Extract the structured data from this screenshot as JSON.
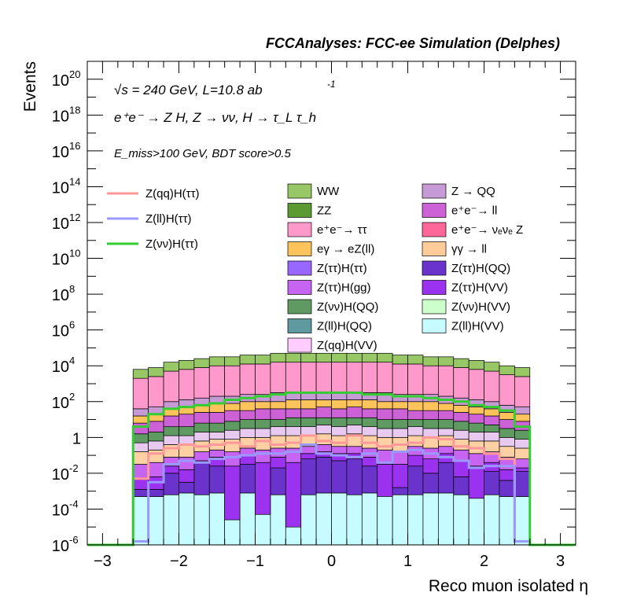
{
  "header": "FCCAnalyses: FCC-ee Simulation (Delphes)",
  "annotations": {
    "energy_line": "√s = 240 GeV, L=10.8 ab",
    "energy_sup": "-1",
    "process_line": "e⁺e⁻ → Z H, Z → νν, H → τ_L τ_h",
    "selection_line": "E_miss>100 GeV, BDT score>0.5"
  },
  "chart_data": {
    "type": "bar",
    "stacked": true,
    "log_y": true,
    "xlabel": "Reco muon isolated η",
    "ylabel": "Events",
    "xlim": [
      -3.2,
      3.2
    ],
    "ylim_exponents": [
      -6,
      21
    ],
    "x_ticks": [
      -3,
      -2,
      -1,
      0,
      1,
      2,
      3
    ],
    "x_tick_labels": [
      "−3",
      "−2",
      "−1",
      "0",
      "1",
      "2",
      "3"
    ],
    "y_ticks": [
      -6,
      -4,
      -2,
      0,
      2,
      4,
      6,
      8,
      10,
      12,
      14,
      16,
      18,
      20
    ],
    "y_tick_labels": [
      {
        "base": "10",
        "exp": "-6"
      },
      {
        "base": "10",
        "exp": "-4"
      },
      {
        "base": "10",
        "exp": "-2"
      },
      {
        "base": "1",
        "exp": ""
      },
      {
        "base": "10",
        "exp": "2"
      },
      {
        "base": "10",
        "exp": "4"
      },
      {
        "base": "10",
        "exp": "6"
      },
      {
        "base": "10",
        "exp": "8"
      },
      {
        "base": "10",
        "exp": "10"
      },
      {
        "base": "10",
        "exp": "12"
      },
      {
        "base": "10",
        "exp": "14"
      },
      {
        "base": "10",
        "exp": "16"
      },
      {
        "base": "10",
        "exp": "18"
      },
      {
        "base": "10",
        "exp": "20"
      }
    ],
    "bin_edges": [
      -2.6,
      -2.4,
      -2.2,
      -2.0,
      -1.8,
      -1.6,
      -1.4,
      -1.2,
      -1.0,
      -0.8,
      -0.6,
      -0.4,
      -0.2,
      0.0,
      0.2,
      0.4,
      0.6,
      0.8,
      1.0,
      1.2,
      1.4,
      1.6,
      1.8,
      2.0,
      2.2,
      2.4,
      2.6
    ],
    "stack_boundaries_log10": [
      [
        -6,
        -6,
        -6,
        -6,
        -6,
        -6,
        -6,
        -6,
        -6,
        -6,
        -6,
        -6,
        -6,
        -6,
        -6,
        -6,
        -6,
        -6,
        -6,
        -6,
        -6,
        -6,
        -6,
        -6,
        -6,
        -6
      ],
      [
        -3.3,
        -3.3,
        -3.2,
        -3.1,
        -3.2,
        -3.1,
        -3.2,
        -3.1,
        -3.2,
        -3.2,
        -3.1,
        -3.2,
        -3.1,
        -3.1,
        -3.2,
        -3.1,
        -3.1,
        -3.2,
        -3.2,
        -3.1,
        -3.1,
        -3.2,
        -3.1,
        -3.2,
        -3.3,
        -3.3
      ],
      [
        -2.9,
        -2.9,
        -2.0,
        -2.5,
        -1.4,
        -1.6,
        -4.6,
        -1.5,
        -4.3,
        -1.7,
        -5.0,
        -1.2,
        -1.1,
        -1.3,
        -1.2,
        -1.6,
        -3.3,
        -2.8,
        -1.6,
        -2.0,
        -1.4,
        -2.2,
        -3.4,
        -1.9,
        -2.4,
        -1.9
      ],
      [
        -2.3,
        -2.2,
        -1.6,
        -1.8,
        -1.3,
        -1.1,
        -1.6,
        -1.0,
        -1.4,
        -1.1,
        -1.4,
        -0.9,
        -0.8,
        -0.9,
        -0.9,
        -1.1,
        -1.5,
        -1.5,
        -1.0,
        -1.2,
        -0.9,
        -1.3,
        -1.6,
        -1.4,
        -1.8,
        -1.7
      ],
      [
        -1.5,
        -1.4,
        -1.1,
        -1.1,
        -0.8,
        -0.7,
        -0.8,
        -0.6,
        -0.7,
        -0.6,
        -0.6,
        -0.5,
        -0.4,
        -0.5,
        -0.5,
        -0.6,
        -0.7,
        -0.8,
        -0.5,
        -0.6,
        -0.5,
        -0.7,
        -0.9,
        -0.8,
        -1.1,
        -1.2
      ],
      [
        -0.8,
        -0.7,
        -0.4,
        -0.4,
        -0.2,
        -0.1,
        -0.1,
        0.0,
        0.0,
        0.1,
        0.1,
        0.1,
        0.2,
        0.1,
        0.2,
        0.1,
        0.0,
        0.0,
        0.1,
        0.0,
        0.1,
        -0.1,
        -0.2,
        -0.2,
        -0.5,
        -0.6
      ],
      [
        -0.3,
        -0.2,
        0.1,
        0.1,
        0.3,
        0.3,
        0.4,
        0.5,
        0.5,
        0.6,
        0.6,
        0.6,
        0.7,
        0.6,
        0.7,
        0.6,
        0.5,
        0.5,
        0.6,
        0.5,
        0.5,
        0.4,
        0.3,
        0.3,
        0.0,
        -0.1
      ],
      [
        0.2,
        0.3,
        0.6,
        0.6,
        0.8,
        0.8,
        0.9,
        1.0,
        1.0,
        1.0,
        1.1,
        1.1,
        1.1,
        1.1,
        1.1,
        1.1,
        1.0,
        1.0,
        1.0,
        1.0,
        1.0,
        0.9,
        0.8,
        0.7,
        0.5,
        0.4
      ],
      [
        0.8,
        0.9,
        1.2,
        1.3,
        1.4,
        1.4,
        1.5,
        1.5,
        1.6,
        1.6,
        1.6,
        1.6,
        1.7,
        1.6,
        1.7,
        1.6,
        1.6,
        1.6,
        1.5,
        1.5,
        1.5,
        1.4,
        1.3,
        1.2,
        1.0,
        0.9
      ],
      [
        1.2,
        1.3,
        1.6,
        1.7,
        1.8,
        1.9,
        1.9,
        2.0,
        2.0,
        2.0,
        2.1,
        2.1,
        2.1,
        2.1,
        2.1,
        2.1,
        2.0,
        2.0,
        2.0,
        2.0,
        1.9,
        1.8,
        1.7,
        1.6,
        1.4,
        1.3
      ],
      [
        1.6,
        1.7,
        2.0,
        2.1,
        2.2,
        2.3,
        2.3,
        2.4,
        2.4,
        2.5,
        2.5,
        2.5,
        2.5,
        2.5,
        2.5,
        2.5,
        2.5,
        2.4,
        2.4,
        2.4,
        2.3,
        2.2,
        2.1,
        2.0,
        1.8,
        1.7
      ],
      [
        3.3,
        3.4,
        3.7,
        3.8,
        3.9,
        4.0,
        4.0,
        4.1,
        4.1,
        4.2,
        4.2,
        4.2,
        4.2,
        4.2,
        4.2,
        4.2,
        4.2,
        4.1,
        4.1,
        4.0,
        4.0,
        3.9,
        3.8,
        3.7,
        3.5,
        3.4
      ],
      [
        3.8,
        3.9,
        4.2,
        4.3,
        4.4,
        4.5,
        4.5,
        4.6,
        4.6,
        4.7,
        4.7,
        4.7,
        4.7,
        4.7,
        4.7,
        4.7,
        4.7,
        4.6,
        4.6,
        4.5,
        4.5,
        4.4,
        4.3,
        4.2,
        4.0,
        3.9
      ]
    ],
    "stack_fills": [
      "#c6fbff",
      "#6a33cc",
      "#9a32f0",
      "#c765f2",
      "#ffd0a3",
      "#e8caf0",
      "#5e9a62",
      "#cd62d6",
      "#ffc35c",
      "#c69ad4",
      "#ff99cc",
      "#98c765"
    ],
    "lines": [
      {
        "name": "Z(qq)H(ττ)",
        "color": "#ff9999",
        "log10": [
          -2.3,
          -0.9,
          -0.6,
          -0.4,
          -0.5,
          -0.4,
          -0.3,
          -0.5,
          -0.2,
          -0.4,
          -0.3,
          0.1,
          -0.2,
          -0.3,
          0.1,
          -0.3,
          -0.5,
          -0.4,
          -0.3,
          0.0,
          -0.1,
          -0.5,
          -0.6,
          -0.9,
          -1.2,
          -5.8
        ]
      },
      {
        "name": "Z(ll)H(ττ)",
        "color": "#9999ff",
        "log10": [
          -5.8,
          -2.5,
          -1.5,
          -1.3,
          -1.4,
          -1.2,
          -1.1,
          -1.0,
          -0.9,
          -0.9,
          -0.8,
          -0.4,
          -0.9,
          -1.0,
          -1.1,
          -0.9,
          -1.4,
          -0.8,
          -0.7,
          -0.9,
          -1.1,
          -1.3,
          -1.7,
          -1.6,
          -1.6,
          -5.8
        ]
      },
      {
        "name": "Z(νν)H(ττ)",
        "color": "#33cc33",
        "log10": [
          0.6,
          1.3,
          1.6,
          1.7,
          1.8,
          1.9,
          2.1,
          2.2,
          2.3,
          2.4,
          2.5,
          2.5,
          2.5,
          2.5,
          2.5,
          2.4,
          2.4,
          2.3,
          2.3,
          2.2,
          2.1,
          2.0,
          1.8,
          1.7,
          1.5,
          0.6
        ]
      }
    ],
    "legend": [
      {
        "label": "WW",
        "color": "#98c765"
      },
      {
        "label": "Z → QQ",
        "color": "#c69ad4"
      },
      {
        "label": "ZZ",
        "color": "#5a9a30"
      },
      {
        "label": "e⁺e⁻→ ll",
        "color": "#cd62d6"
      },
      {
        "label": "e⁺e⁻→ ττ",
        "color": "#ff99cc"
      },
      {
        "label": "e⁺e⁻→ νₑνₑ Z",
        "color": "#ff6699"
      },
      {
        "label": "eγ → eZ(ll)",
        "color": "#ffc35c"
      },
      {
        "label": "γγ → ll",
        "color": "#ffcc99"
      },
      {
        "label": "Z(ττ)H(ττ)",
        "color": "#9966ff"
      },
      {
        "label": "Z(ττ)H(QQ)",
        "color": "#6a33cc"
      },
      {
        "label": "Z(ττ)H(gg)",
        "color": "#c765f2"
      },
      {
        "label": "Z(ττ)H(VV)",
        "color": "#9a32f0"
      },
      {
        "label": "Z(νν)H(QQ)",
        "color": "#5e9a62"
      },
      {
        "label": "Z(νν)H(VV)",
        "color": "#ccffcc"
      },
      {
        "label": "Z(ll)H(QQ)",
        "color": "#5f9aa0"
      },
      {
        "label": "Z(ll)H(VV)",
        "color": "#c6fbff"
      },
      {
        "label": "Z(qq)H(VV)",
        "color": "#ffccff"
      }
    ]
  }
}
